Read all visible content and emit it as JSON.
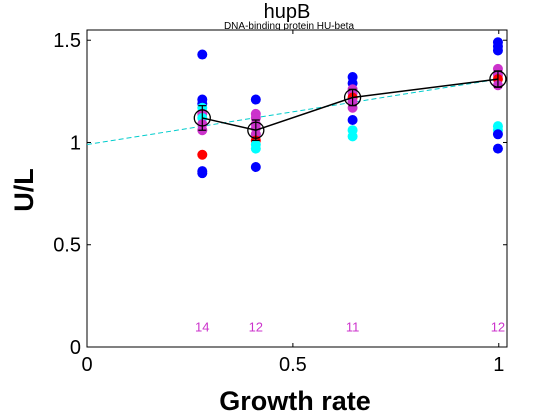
{
  "chart_data": {
    "type": "scatter",
    "title": "hupB",
    "subtitle": "DNA-binding protein HU-beta",
    "xlabel": "Growth rate",
    "ylabel": "U/L",
    "xlim": [
      0,
      1.02
    ],
    "ylim": [
      0,
      1.55
    ],
    "xticks": [
      0,
      0.5,
      1
    ],
    "xtick_labels": [
      "0",
      "0.5",
      "1"
    ],
    "yticks": [
      0,
      0.5,
      1,
      1.5
    ],
    "ytick_labels": [
      "0",
      "0.5",
      "1",
      "1.5"
    ],
    "grid": false,
    "colors": {
      "blue": "#0000ff",
      "cyan": "#00ffff",
      "red": "#ff0000",
      "magenta": "#cc33cc",
      "fit_line": "#00cccc",
      "mean_line": "#000000",
      "count_text": "#cc33cc"
    },
    "points": [
      {
        "x": 0.28,
        "y": 1.43,
        "color": "blue"
      },
      {
        "x": 0.28,
        "y": 1.21,
        "color": "blue"
      },
      {
        "x": 0.28,
        "y": 1.19,
        "color": "blue"
      },
      {
        "x": 0.28,
        "y": 1.17,
        "color": "cyan"
      },
      {
        "x": 0.28,
        "y": 1.14,
        "color": "magenta"
      },
      {
        "x": 0.28,
        "y": 1.12,
        "color": "cyan"
      },
      {
        "x": 0.28,
        "y": 1.09,
        "color": "magenta"
      },
      {
        "x": 0.28,
        "y": 1.06,
        "color": "magenta"
      },
      {
        "x": 0.28,
        "y": 0.94,
        "color": "red"
      },
      {
        "x": 0.28,
        "y": 0.86,
        "color": "blue"
      },
      {
        "x": 0.28,
        "y": 0.85,
        "color": "blue"
      },
      {
        "x": 0.41,
        "y": 1.21,
        "color": "blue"
      },
      {
        "x": 0.41,
        "y": 1.14,
        "color": "magenta"
      },
      {
        "x": 0.41,
        "y": 1.12,
        "color": "magenta"
      },
      {
        "x": 0.41,
        "y": 1.09,
        "color": "magenta"
      },
      {
        "x": 0.41,
        "y": 1.07,
        "color": "magenta"
      },
      {
        "x": 0.41,
        "y": 1.04,
        "color": "magenta"
      },
      {
        "x": 0.41,
        "y": 1.01,
        "color": "red"
      },
      {
        "x": 0.41,
        "y": 0.99,
        "color": "cyan"
      },
      {
        "x": 0.41,
        "y": 0.97,
        "color": "cyan"
      },
      {
        "x": 0.41,
        "y": 0.88,
        "color": "blue"
      },
      {
        "x": 0.645,
        "y": 1.32,
        "color": "blue"
      },
      {
        "x": 0.645,
        "y": 1.29,
        "color": "blue"
      },
      {
        "x": 0.645,
        "y": 1.26,
        "color": "magenta"
      },
      {
        "x": 0.645,
        "y": 1.24,
        "color": "magenta"
      },
      {
        "x": 0.645,
        "y": 1.22,
        "color": "red"
      },
      {
        "x": 0.645,
        "y": 1.2,
        "color": "magenta"
      },
      {
        "x": 0.645,
        "y": 1.17,
        "color": "magenta"
      },
      {
        "x": 0.645,
        "y": 1.11,
        "color": "blue"
      },
      {
        "x": 0.645,
        "y": 1.06,
        "color": "cyan"
      },
      {
        "x": 0.645,
        "y": 1.03,
        "color": "cyan"
      },
      {
        "x": 0.998,
        "y": 1.49,
        "color": "blue"
      },
      {
        "x": 0.998,
        "y": 1.47,
        "color": "blue"
      },
      {
        "x": 0.998,
        "y": 1.45,
        "color": "blue"
      },
      {
        "x": 0.998,
        "y": 1.36,
        "color": "magenta"
      },
      {
        "x": 0.998,
        "y": 1.33,
        "color": "magenta"
      },
      {
        "x": 0.998,
        "y": 1.31,
        "color": "red"
      },
      {
        "x": 0.998,
        "y": 1.28,
        "color": "magenta"
      },
      {
        "x": 0.998,
        "y": 1.08,
        "color": "cyan"
      },
      {
        "x": 0.998,
        "y": 1.06,
        "color": "cyan"
      },
      {
        "x": 0.998,
        "y": 1.04,
        "color": "blue"
      },
      {
        "x": 0.998,
        "y": 0.97,
        "color": "blue"
      }
    ],
    "means": [
      {
        "x": 0.28,
        "y": 1.12,
        "err": 0.06
      },
      {
        "x": 0.41,
        "y": 1.06,
        "err": 0.05
      },
      {
        "x": 0.645,
        "y": 1.22,
        "err": 0.04
      },
      {
        "x": 0.998,
        "y": 1.31,
        "err": 0.04
      }
    ],
    "fit_line": {
      "x": [
        0,
        1
      ],
      "y": [
        0.99,
        1.31
      ]
    },
    "counts": [
      {
        "x": 0.28,
        "label": "14"
      },
      {
        "x": 0.41,
        "label": "12"
      },
      {
        "x": 0.645,
        "label": "11"
      },
      {
        "x": 0.998,
        "label": "12"
      }
    ],
    "count_label_y": 0.1
  }
}
